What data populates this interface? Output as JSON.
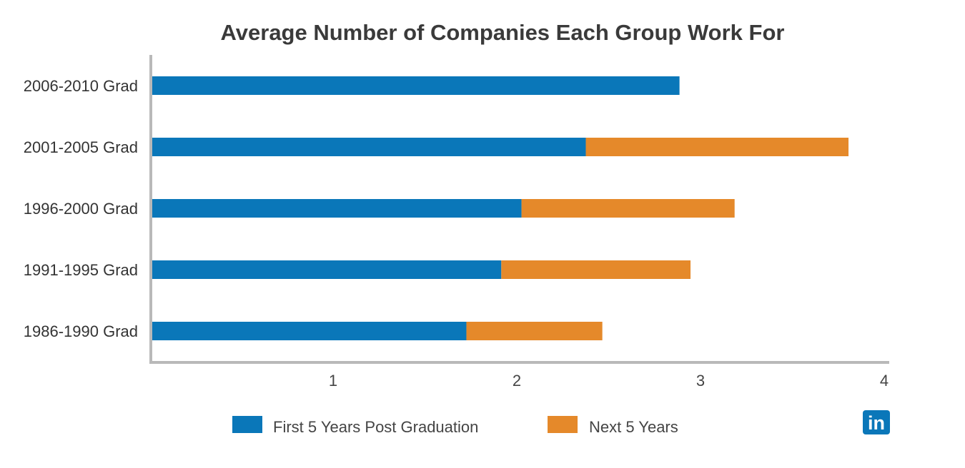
{
  "chart_data": {
    "type": "bar",
    "orientation": "horizontal",
    "stacked": true,
    "title": "Average Number of Companies Each Group Work For",
    "xlabel": "",
    "ylabel": "",
    "categories": [
      "2006-2010 Grad",
      "2001-2005 Grad",
      "1996-2000 Grad",
      "1991-1995 Grad",
      "1986-1990 Grad"
    ],
    "series": [
      {
        "name": "First 5 Years Post Graduation",
        "color": "#0a77b9",
        "values": [
          2.87,
          2.36,
          2.01,
          1.9,
          1.71
        ]
      },
      {
        "name": "Next 5 Years",
        "color": "#e5892a",
        "values": [
          0,
          1.43,
          1.16,
          1.03,
          0.74
        ]
      }
    ],
    "xlim": [
      0,
      4
    ],
    "xticks": [
      1,
      2,
      3,
      4
    ],
    "grid": false,
    "legend_position": "bottom"
  },
  "logo": {
    "text": "in",
    "icon": "linkedin-icon",
    "color": "#0a77b9"
  }
}
